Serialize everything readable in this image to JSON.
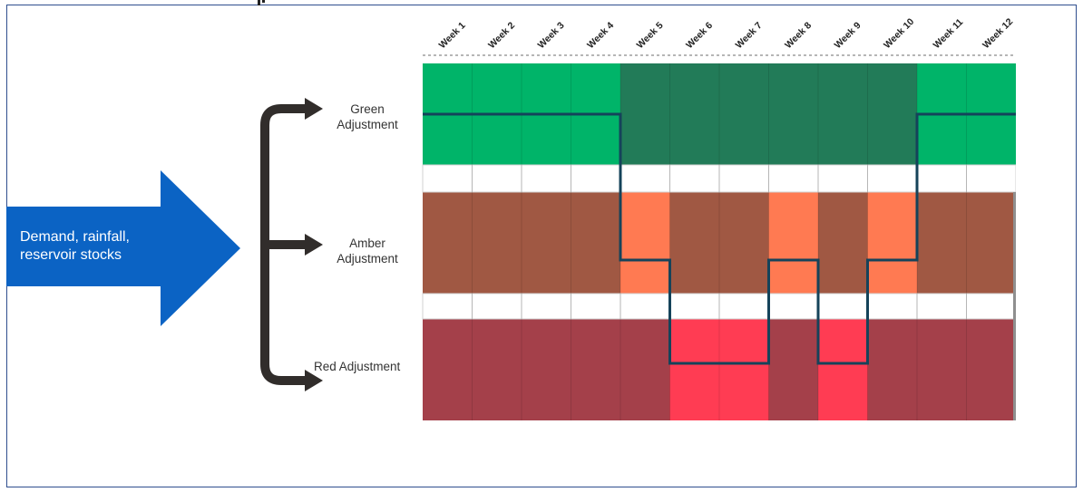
{
  "input": {
    "lines": [
      "Demand, rainfall,",
      "reservoir stocks"
    ],
    "color": "#0b63c4"
  },
  "levels": [
    {
      "key": "green",
      "label_lines": [
        "Green",
        "Adjustment"
      ],
      "color_a": "#00b469",
      "color_b": "#227b58"
    },
    {
      "key": "amber",
      "label_lines": [
        "Amber",
        "Adjustment"
      ],
      "color_a": "#a05843",
      "color_b": "#ff7a52"
    },
    {
      "key": "red",
      "label_lines": [
        "Red Adjustment"
      ],
      "color_a": "#a4404a",
      "color_b": "#ff3c53"
    }
  ],
  "chart_data": {
    "type": "step-timeline",
    "weeks": [
      "Week 1",
      "Week 2",
      "Week 3",
      "Week 4",
      "Week 5",
      "Week 6",
      "Week 7",
      "Week 8",
      "Week 9",
      "Week 10",
      "Week 11",
      "Week 12"
    ],
    "level_by_week": [
      "green",
      "green",
      "green",
      "green",
      "amber",
      "red",
      "red",
      "amber",
      "red",
      "amber",
      "green",
      "green"
    ]
  }
}
